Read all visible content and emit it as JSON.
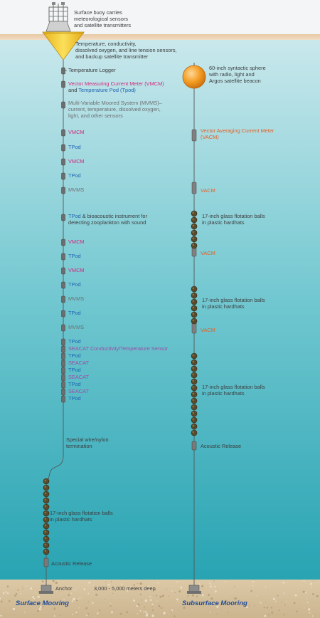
{
  "surface": {
    "buoy": "Surface buoy carries\nmeteorological sensors\nand satellite transmitters",
    "hull_sensors": "Temperature, conductivity,\ndissolved oxygen, and line tension sensors,\nand backup satellite transmitter",
    "temp_logger": "Temperature Logger",
    "vmcm_a": "Vector Measuring Current Meter (VMCM)",
    "vmcm_b": "and",
    "tpod_long": "Temperature Pod (Tpod)",
    "mvms_long": "Multi-Variable Moored System (MVMS)–\ncurrent, temperature, dissolved oxygen,\nlight, and other sensors",
    "vmcm_1": "VMCM",
    "tpod_1": "TPod",
    "vmcm_2": "VMCM",
    "tpod_2": "TPod",
    "mvms_1": "MVMS",
    "tpod_bio": "TPod",
    "bio_text": "& bioacoustic instrument for\ndetecting zooplankton with sound",
    "vmcm_3": "VMCM",
    "tpod_3": "TPod",
    "vmcm_4": "VMCM",
    "tpod_4": "TPod",
    "mvms_2": "MVMS",
    "tpod_5": "TPod",
    "mvms_3": "MVMS",
    "tpod_6": "TPod",
    "seacat_long": "SEACAT Conductivity/Temperature Sensor",
    "tpod_7": "TPod",
    "seacat_1": "SEACAT",
    "tpod_8": "TPod",
    "seacat_2": "SEACAT",
    "tpod_9": "TPod",
    "seacat_3": "SEACAT",
    "tpod_10": "TPod",
    "termination": "Special wire/nylon\ntermination",
    "balls": "17-inch glass flotation balls\nin plastic hardhats",
    "release": "Acoustic Release",
    "anchor": "Anchor"
  },
  "subsurface": {
    "sphere": "60-inch syntactic sphere\nwith radio, light and\nArgos satellite beacon",
    "vacm_long": "Vector Averaging Current Meter\n(VACM)",
    "vacm_1": "VACM",
    "balls_1": "17-inch glass flotation balls\nin plastic hardhats",
    "vacm_2": "VACM",
    "balls_2": "17-inch glass flotation balls\nin plastic hardhats",
    "vacm_3": "VACM",
    "balls_3": "17-inch glass flotation balls\nin plastic hardhats",
    "release": "Acoustic Release"
  },
  "depth": "3,000 - 5,000 meters deep",
  "titles": {
    "surface": "Surface Mooring",
    "subsurface": "Subsurface Mooring"
  },
  "colors": {
    "sky": "#f2f4f6",
    "water_top": "#c6e6ea",
    "water_bottom": "#2aa5b4",
    "seafloor": "#d9c6a6",
    "buoy": "#f2d13a",
    "sphere": "#f29b22",
    "float_ball": "#5a4b2c",
    "vmcm_label": "#d12a7f",
    "tpod_label": "#1f63b0",
    "vacm_label": "#e45f24",
    "seacat_label": "#9b4ea5",
    "title": "#214c97"
  }
}
